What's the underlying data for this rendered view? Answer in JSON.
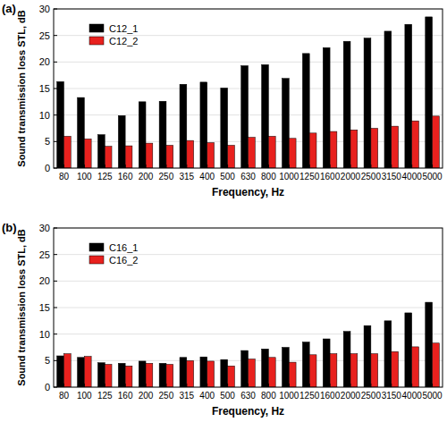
{
  "chart_data": [
    {
      "type": "bar",
      "title": "(a)",
      "x_label": "Frequency, Hz",
      "y_label": "Sound transmission loss STL, dB",
      "categories": [
        "80",
        "100",
        "125",
        "160",
        "200",
        "250",
        "315",
        "400",
        "500",
        "630",
        "800",
        "1000",
        "1250",
        "1600",
        "2000",
        "2500",
        "3150",
        "4000",
        "5000"
      ],
      "series": [
        {
          "name": "C12_1",
          "color": "#000000",
          "values": [
            16.3,
            13.3,
            6.3,
            9.9,
            12.5,
            12.6,
            15.8,
            16.2,
            15.1,
            19.3,
            19.5,
            16.9,
            21.6,
            22.7,
            23.9,
            24.5,
            25.8,
            27.1,
            28.5
          ]
        },
        {
          "name": "C12_2",
          "color": "#e8211e",
          "values": [
            6.0,
            5.5,
            4.1,
            4.2,
            4.7,
            4.3,
            5.2,
            4.8,
            4.3,
            5.8,
            6.0,
            5.6,
            6.6,
            6.9,
            7.2,
            7.5,
            7.9,
            8.9,
            9.8
          ]
        }
      ],
      "ylim": [
        0,
        30
      ],
      "yticks": [
        0,
        5,
        10,
        15,
        20,
        25,
        30
      ],
      "grid": true,
      "legend": "upper left"
    },
    {
      "type": "bar",
      "title": "(b)",
      "x_label": "Frequency, Hz",
      "y_label": "Sound transmission loss STL, dB",
      "categories": [
        "80",
        "100",
        "125",
        "160",
        "200",
        "250",
        "315",
        "400",
        "500",
        "630",
        "800",
        "1000",
        "1250",
        "1600",
        "2000",
        "2500",
        "3150",
        "4000",
        "5000"
      ],
      "series": [
        {
          "name": "C16_1",
          "color": "#000000",
          "values": [
            5.9,
            5.6,
            4.6,
            4.5,
            4.9,
            4.5,
            5.6,
            5.7,
            5.2,
            6.9,
            7.2,
            7.5,
            8.5,
            9.1,
            10.5,
            11.6,
            12.5,
            14.0,
            16.0
          ]
        },
        {
          "name": "C16_2",
          "color": "#e8211e",
          "values": [
            6.3,
            5.8,
            4.3,
            4.0,
            4.5,
            4.3,
            5.0,
            4.9,
            4.0,
            5.3,
            5.6,
            4.7,
            6.1,
            6.3,
            6.3,
            6.3,
            6.7,
            7.6,
            8.3
          ]
        }
      ],
      "ylim": [
        0,
        30
      ],
      "yticks": [
        0,
        5,
        10,
        15,
        20,
        25,
        30
      ],
      "grid": true,
      "legend": "upper left"
    }
  ]
}
